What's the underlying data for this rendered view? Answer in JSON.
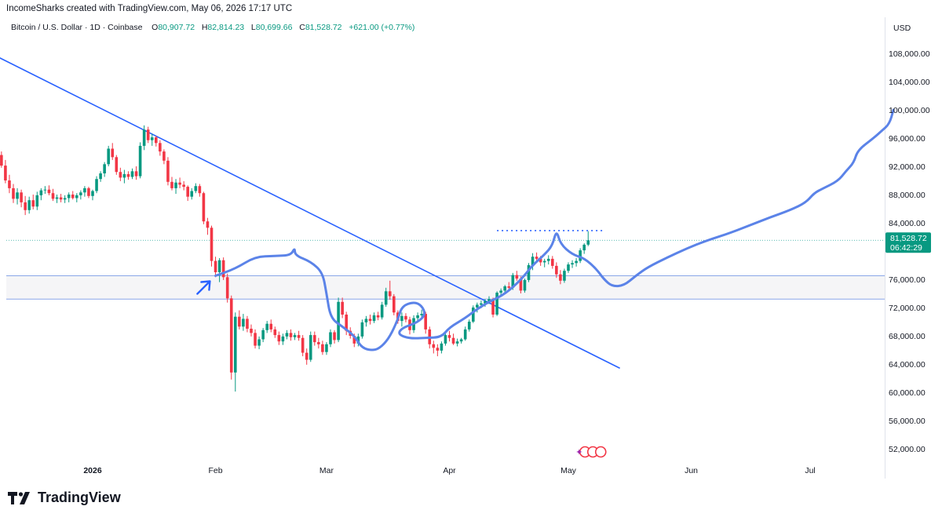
{
  "header": {
    "attribution": "IncomeSharks created with TradingView.com, May 06, 2026 17:17 UTC"
  },
  "legend": {
    "symbol": "Bitcoin / U.S. Dollar · 1D · Coinbase",
    "o_label": "O",
    "o_value": "80,907.72",
    "h_label": "H",
    "h_value": "82,814.23",
    "l_label": "L",
    "l_value": "80,699.66",
    "c_label": "C",
    "c_value": "81,528.72",
    "change": "+621.00 (+0.77%)"
  },
  "footer": {
    "brand": "TradingView"
  },
  "colors": {
    "up": "#089981",
    "down": "#f23645",
    "drawing": "#2962ff",
    "path": "#5b83e8"
  },
  "chart_data": {
    "type": "candlestick",
    "currency": "USD",
    "price_label": "81,528.72",
    "countdown": "06:42:29",
    "y_ticks": [
      "108,000.00",
      "104,000.00",
      "100,000.00",
      "96,000.00",
      "92,000.00",
      "88,000.00",
      "84,000.00",
      "76,000.00",
      "72,000.00",
      "68,000.00",
      "64,000.00",
      "60,000.00",
      "56,000.00",
      "52,000.00"
    ],
    "x_ticks": [
      "2026",
      "Feb",
      "Mar",
      "Apr",
      "May",
      "Jun",
      "Jul"
    ],
    "ylim": [
      50000,
      112000
    ],
    "last_price": 81528.72,
    "zone": [
      73200,
      76500
    ],
    "resistance_dots": 82900,
    "trendline": {
      "from": [
        "2025-12-07",
        107800
      ],
      "to": [
        "2026-05-14",
        63400
      ]
    },
    "candles": [
      [
        "2025-12-08",
        92500,
        94200,
        91400,
        93600
      ],
      [
        "2025-12-09",
        93600,
        94100,
        91800,
        92100
      ],
      [
        "2025-12-10",
        92100,
        92900,
        89600,
        90000
      ],
      [
        "2025-12-11",
        90000,
        90800,
        88200,
        88900
      ],
      [
        "2025-12-12",
        88900,
        89500,
        86800,
        87400
      ],
      [
        "2025-12-13",
        87400,
        88900,
        86600,
        88300
      ],
      [
        "2025-12-14",
        88300,
        88700,
        86200,
        86900
      ],
      [
        "2025-12-15",
        86900,
        87800,
        85100,
        85800
      ],
      [
        "2025-12-16",
        85800,
        87700,
        85300,
        87200
      ],
      [
        "2025-12-17",
        87200,
        88000,
        85900,
        86300
      ],
      [
        "2025-12-18",
        86300,
        88400,
        85800,
        87900
      ],
      [
        "2025-12-19",
        87900,
        88900,
        87200,
        88600
      ],
      [
        "2025-12-20",
        88600,
        89200,
        88100,
        88700
      ],
      [
        "2025-12-21",
        88700,
        89300,
        87900,
        88200
      ],
      [
        "2025-12-22",
        88200,
        88800,
        87100,
        87400
      ],
      [
        "2025-12-23",
        87400,
        88000,
        86800,
        87600
      ],
      [
        "2025-12-24",
        87600,
        88100,
        86900,
        87300
      ],
      [
        "2025-12-25",
        87300,
        87900,
        86800,
        87500
      ],
      [
        "2025-12-26",
        87500,
        88300,
        86900,
        88000
      ],
      [
        "2025-12-27",
        88000,
        88500,
        87300,
        87500
      ],
      [
        "2025-12-28",
        87500,
        88200,
        86900,
        87900
      ],
      [
        "2025-12-29",
        87900,
        88600,
        87300,
        88300
      ],
      [
        "2025-12-30",
        88300,
        89200,
        87700,
        88900
      ],
      [
        "2025-12-31",
        88900,
        89100,
        87500,
        87800
      ],
      [
        "2026-01-01",
        87800,
        88700,
        87200,
        88500
      ],
      [
        "2026-01-02",
        88500,
        90600,
        88200,
        90200
      ],
      [
        "2026-01-03",
        90200,
        91300,
        89800,
        91000
      ],
      [
        "2026-01-04",
        91000,
        92600,
        90500,
        92300
      ],
      [
        "2026-01-05",
        92300,
        94900,
        92000,
        94500
      ],
      [
        "2026-01-06",
        94500,
        95300,
        92900,
        93300
      ],
      [
        "2026-01-07",
        93300,
        93600,
        90800,
        91200
      ],
      [
        "2026-01-08",
        91200,
        91800,
        89900,
        90400
      ],
      [
        "2026-01-09",
        90400,
        91500,
        89600,
        90900
      ],
      [
        "2026-01-10",
        90900,
        91300,
        90100,
        90500
      ],
      [
        "2026-01-11",
        90500,
        91700,
        90200,
        91300
      ],
      [
        "2026-01-12",
        91300,
        92000,
        90100,
        90600
      ],
      [
        "2026-01-13",
        90600,
        95400,
        90300,
        94900
      ],
      [
        "2026-01-14",
        94900,
        97800,
        94300,
        97200
      ],
      [
        "2026-01-15",
        97200,
        97600,
        95300,
        95700
      ],
      [
        "2026-01-16",
        95700,
        96600,
        94900,
        96100
      ],
      [
        "2026-01-17",
        96100,
        96300,
        94800,
        95300
      ],
      [
        "2026-01-18",
        95300,
        95700,
        93500,
        94100
      ],
      [
        "2026-01-19",
        94100,
        94400,
        92300,
        92800
      ],
      [
        "2026-01-20",
        92800,
        93300,
        89300,
        89800
      ],
      [
        "2026-01-21",
        89800,
        90500,
        88600,
        88900
      ],
      [
        "2026-01-22",
        88900,
        90200,
        88100,
        89700
      ],
      [
        "2026-01-23",
        89700,
        90400,
        88900,
        89400
      ],
      [
        "2026-01-24",
        89400,
        89900,
        88600,
        89100
      ],
      [
        "2026-01-25",
        89100,
        89300,
        87100,
        87700
      ],
      [
        "2026-01-26",
        87700,
        88900,
        87300,
        88500
      ],
      [
        "2026-01-27",
        88500,
        89600,
        88200,
        89200
      ],
      [
        "2026-01-28",
        89200,
        89500,
        87700,
        88200
      ],
      [
        "2026-01-29",
        88200,
        88400,
        83800,
        84200
      ],
      [
        "2026-01-30",
        84200,
        84700,
        82300,
        83300
      ],
      [
        "2026-01-31",
        83300,
        83600,
        77800,
        78600
      ],
      [
        "2026-02-01",
        78600,
        79200,
        76300,
        77000
      ],
      [
        "2026-02-02",
        77000,
        79000,
        75600,
        78700
      ],
      [
        "2026-02-03",
        78700,
        79100,
        75900,
        76300
      ],
      [
        "2026-02-04",
        76300,
        76800,
        72700,
        73300
      ],
      [
        "2026-02-05",
        73300,
        73700,
        61800,
        62800
      ],
      [
        "2026-02-06",
        62800,
        71300,
        60100,
        70700
      ],
      [
        "2026-02-07",
        70700,
        71600,
        68900,
        69300
      ],
      [
        "2026-02-08",
        69300,
        71100,
        68700,
        70400
      ],
      [
        "2026-02-09",
        70400,
        70800,
        68500,
        69000
      ],
      [
        "2026-02-10",
        69000,
        69600,
        67900,
        68400
      ],
      [
        "2026-02-11",
        68400,
        68900,
        66200,
        66600
      ],
      [
        "2026-02-12",
        66600,
        67900,
        66100,
        67500
      ],
      [
        "2026-02-13",
        67500,
        69100,
        67100,
        68800
      ],
      [
        "2026-02-14",
        68800,
        70100,
        68400,
        69700
      ],
      [
        "2026-02-15",
        69700,
        70300,
        68500,
        68900
      ],
      [
        "2026-02-16",
        68900,
        69300,
        67700,
        68100
      ],
      [
        "2026-02-17",
        68100,
        68600,
        66700,
        67200
      ],
      [
        "2026-02-18",
        67200,
        68300,
        66700,
        67900
      ],
      [
        "2026-02-19",
        67900,
        68800,
        67500,
        68400
      ],
      [
        "2026-02-20",
        68400,
        68900,
        67300,
        67800
      ],
      [
        "2026-02-21",
        67800,
        68400,
        67400,
        68100
      ],
      [
        "2026-02-22",
        68100,
        68700,
        67300,
        67700
      ],
      [
        "2026-02-23",
        67700,
        68100,
        65100,
        65600
      ],
      [
        "2026-02-24",
        65600,
        66200,
        63900,
        64600
      ],
      [
        "2026-02-25",
        64600,
        68600,
        64300,
        68100
      ],
      [
        "2026-02-26",
        68100,
        68600,
        66600,
        67100
      ],
      [
        "2026-02-27",
        67100,
        67700,
        66200,
        66800
      ],
      [
        "2026-02-28",
        66800,
        67300,
        65300,
        65700
      ],
      [
        "2026-03-01",
        65700,
        67100,
        65300,
        66800
      ],
      [
        "2026-03-02",
        66800,
        68900,
        66400,
        68500
      ],
      [
        "2026-03-03",
        68500,
        68800,
        66900,
        67400
      ],
      [
        "2026-03-04",
        67400,
        73400,
        67100,
        72800
      ],
      [
        "2026-03-05",
        72800,
        73400,
        70500,
        71000
      ],
      [
        "2026-03-06",
        71000,
        71400,
        68100,
        68700
      ],
      [
        "2026-03-07",
        68700,
        69200,
        67600,
        68000
      ],
      [
        "2026-03-08",
        68000,
        68300,
        66400,
        66900
      ],
      [
        "2026-03-09",
        66900,
        68300,
        66500,
        67900
      ],
      [
        "2026-03-10",
        67900,
        70300,
        67600,
        69900
      ],
      [
        "2026-03-11",
        69900,
        70800,
        69300,
        70400
      ],
      [
        "2026-03-12",
        70400,
        71000,
        69600,
        70100
      ],
      [
        "2026-03-13",
        70100,
        71300,
        69800,
        70900
      ],
      [
        "2026-03-14",
        70900,
        71400,
        70200,
        70600
      ],
      [
        "2026-03-15",
        70600,
        72800,
        70300,
        72400
      ],
      [
        "2026-03-16",
        72400,
        74800,
        72100,
        74300
      ],
      [
        "2026-03-17",
        74300,
        75800,
        73100,
        73600
      ],
      [
        "2026-03-18",
        73600,
        73900,
        70900,
        71300
      ],
      [
        "2026-03-19",
        71300,
        71600,
        69700,
        70100
      ],
      [
        "2026-03-20",
        70100,
        71300,
        69300,
        70800
      ],
      [
        "2026-03-21",
        70800,
        71200,
        69900,
        70300
      ],
      [
        "2026-03-22",
        70300,
        70700,
        68200,
        68800
      ],
      [
        "2026-03-23",
        68800,
        70900,
        68400,
        70500
      ],
      [
        "2026-03-24",
        70500,
        71300,
        70000,
        70900
      ],
      [
        "2026-03-25",
        70900,
        71700,
        70300,
        71100
      ],
      [
        "2026-03-26",
        71100,
        71400,
        68300,
        68900
      ],
      [
        "2026-03-27",
        68900,
        69300,
        66200,
        66800
      ],
      [
        "2026-03-28",
        66800,
        67300,
        65500,
        66300
      ],
      [
        "2026-03-29",
        66300,
        66800,
        65100,
        65900
      ],
      [
        "2026-03-30",
        65900,
        67200,
        65500,
        66900
      ],
      [
        "2026-03-31",
        66900,
        68400,
        66600,
        68100
      ],
      [
        "2026-04-01",
        68100,
        68700,
        67200,
        67700
      ],
      [
        "2026-04-02",
        67700,
        68300,
        66700,
        66900
      ],
      [
        "2026-04-03",
        66900,
        67600,
        66500,
        67200
      ],
      [
        "2026-04-04",
        67200,
        67700,
        66900,
        67500
      ],
      [
        "2026-04-05",
        67500,
        69300,
        67300,
        68900
      ],
      [
        "2026-04-06",
        68900,
        70300,
        68600,
        70000
      ],
      [
        "2026-04-07",
        70000,
        72300,
        69800,
        72000
      ],
      [
        "2026-04-08",
        72000,
        72700,
        71300,
        72400
      ],
      [
        "2026-04-09",
        72400,
        73000,
        71900,
        72600
      ],
      [
        "2026-04-10",
        72600,
        73200,
        72100,
        72900
      ],
      [
        "2026-04-11",
        72900,
        73600,
        72500,
        73200
      ],
      [
        "2026-04-12",
        73200,
        73400,
        70600,
        71000
      ],
      [
        "2026-04-13",
        71000,
        74300,
        70800,
        74100
      ],
      [
        "2026-04-14",
        74100,
        74700,
        73500,
        74400
      ],
      [
        "2026-04-15",
        74400,
        75200,
        74000,
        75000
      ],
      [
        "2026-04-16",
        75000,
        75600,
        74400,
        74800
      ],
      [
        "2026-04-17",
        74800,
        76900,
        74500,
        76600
      ],
      [
        "2026-04-18",
        76600,
        77200,
        75800,
        76100
      ],
      [
        "2026-04-19",
        76100,
        76400,
        74000,
        74400
      ],
      [
        "2026-04-20",
        74400,
        76100,
        74100,
        75900
      ],
      [
        "2026-04-21",
        75900,
        78300,
        75600,
        78000
      ],
      [
        "2026-04-22",
        78000,
        79700,
        77300,
        79200
      ],
      [
        "2026-04-23",
        79200,
        79800,
        78500,
        78900
      ],
      [
        "2026-04-24",
        78900,
        79300,
        77900,
        78400
      ],
      [
        "2026-04-25",
        78400,
        78900,
        77700,
        78600
      ],
      [
        "2026-04-26",
        78600,
        79400,
        78100,
        78900
      ],
      [
        "2026-04-27",
        78900,
        79300,
        77500,
        77900
      ],
      [
        "2026-04-28",
        77900,
        78400,
        76200,
        76700
      ],
      [
        "2026-04-29",
        76700,
        77300,
        75300,
        75800
      ],
      [
        "2026-04-30",
        75800,
        77500,
        75500,
        77200
      ],
      [
        "2026-05-01",
        77200,
        78400,
        76900,
        78100
      ],
      [
        "2026-05-02",
        78100,
        78700,
        77600,
        78300
      ],
      [
        "2026-05-03",
        78300,
        79000,
        77800,
        78600
      ],
      [
        "2026-05-04",
        78600,
        80400,
        78300,
        80100
      ],
      [
        "2026-05-05",
        80100,
        81100,
        79600,
        80900
      ],
      [
        "2026-05-06",
        80907.72,
        82814.23,
        80699.66,
        81528.72
      ]
    ],
    "forecast_path": [
      [
        "2026-02-01",
        76500
      ],
      [
        "2026-02-06",
        77500
      ],
      [
        "2026-02-11",
        79200
      ],
      [
        "2026-02-16",
        79300
      ],
      [
        "2026-02-20",
        79400
      ],
      [
        "2026-02-21",
        80500
      ],
      [
        "2026-02-21",
        79400
      ],
      [
        "2026-02-25",
        78500
      ],
      [
        "2026-02-28",
        77000
      ],
      [
        "2026-03-01",
        74000
      ],
      [
        "2026-03-02",
        70500
      ],
      [
        "2026-03-05",
        69300
      ],
      [
        "2026-03-08",
        68000
      ],
      [
        "2026-03-10",
        66200
      ],
      [
        "2026-03-13",
        65900
      ],
      [
        "2026-03-15",
        66500
      ],
      [
        "2026-03-17",
        67900
      ],
      [
        "2026-03-19",
        70300
      ],
      [
        "2026-03-20",
        72200
      ],
      [
        "2026-03-23",
        72800
      ],
      [
        "2026-03-25",
        72300
      ],
      [
        "2026-03-26",
        71000
      ],
      [
        "2026-03-24",
        69900
      ],
      [
        "2026-03-20",
        69100
      ],
      [
        "2026-03-19",
        68200
      ],
      [
        "2026-03-22",
        67600
      ],
      [
        "2026-03-26",
        67700
      ],
      [
        "2026-03-30",
        67800
      ],
      [
        "2026-04-01",
        69200
      ],
      [
        "2026-04-05",
        70500
      ],
      [
        "2026-04-08",
        71800
      ],
      [
        "2026-04-11",
        72800
      ],
      [
        "2026-04-15",
        73900
      ],
      [
        "2026-04-19",
        75900
      ],
      [
        "2026-04-22",
        78000
      ],
      [
        "2026-04-25",
        79500
      ],
      [
        "2026-04-27",
        80800
      ],
      [
        "2026-04-28",
        83000
      ],
      [
        "2026-04-29",
        81000
      ],
      [
        "2026-05-02",
        79500
      ],
      [
        "2026-05-05",
        79000
      ],
      [
        "2026-05-08",
        77500
      ],
      [
        "2026-05-10",
        76000
      ],
      [
        "2026-05-12",
        75000
      ],
      [
        "2026-05-15",
        75100
      ],
      [
        "2026-05-18",
        76500
      ],
      [
        "2026-05-21",
        77700
      ],
      [
        "2026-05-26",
        79100
      ],
      [
        "2026-05-31",
        80400
      ],
      [
        "2026-06-05",
        81500
      ],
      [
        "2026-06-11",
        82600
      ],
      [
        "2026-06-16",
        83700
      ],
      [
        "2026-06-21",
        84800
      ],
      [
        "2026-06-26",
        85800
      ],
      [
        "2026-06-30",
        86900
      ],
      [
        "2026-07-02",
        88200
      ],
      [
        "2026-07-04",
        88800
      ],
      [
        "2026-07-08",
        89900
      ],
      [
        "2026-07-10",
        91300
      ],
      [
        "2026-07-12",
        92500
      ],
      [
        "2026-07-13",
        94300
      ],
      [
        "2026-07-17",
        96000
      ],
      [
        "2026-07-19",
        97000
      ],
      [
        "2026-07-21",
        98000
      ],
      [
        "2026-07-22",
        100000
      ]
    ]
  }
}
